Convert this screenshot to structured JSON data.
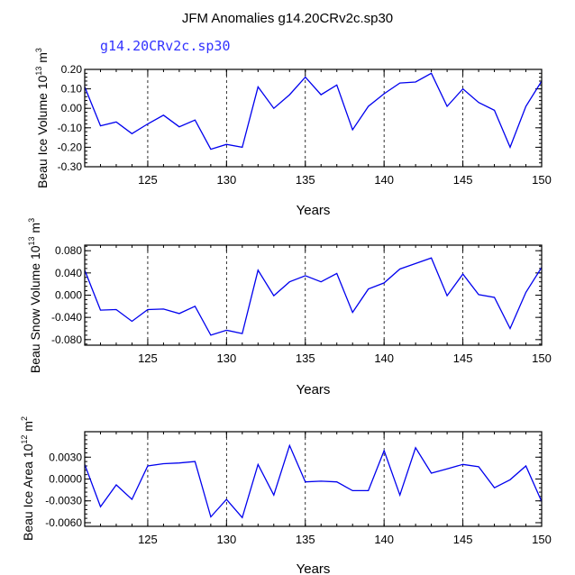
{
  "title": "JFM Anomalies g14.20CRv2c.sp30",
  "subtitle": "g14.20CRv2c.sp30",
  "colors": {
    "series": "#0000ee",
    "axis": "#000000",
    "subtitle": "#3333ff",
    "grid": "#000000"
  },
  "chart_data": [
    {
      "type": "line",
      "ylabel": {
        "prefix": "Beau Ice Volume 10",
        "exp": "13",
        "unit": " m",
        "unit_exp": "3"
      },
      "xlabel": "Years",
      "xlim": [
        121,
        150
      ],
      "ylim": [
        -0.3,
        0.2
      ],
      "xticks": [
        125,
        130,
        135,
        140,
        145,
        150
      ],
      "xtick_labels": [
        "125",
        "130",
        "135",
        "140",
        "145",
        "150"
      ],
      "yticks": [
        0.2,
        0.1,
        0.0,
        -0.1,
        -0.2,
        -0.3
      ],
      "ytick_labels": [
        "0.20",
        "0.10",
        "0.00",
        "-0.10",
        "-0.20",
        "-0.30"
      ],
      "grid_x": [
        125,
        130,
        135,
        140,
        145
      ],
      "x": [
        121,
        122,
        123,
        124,
        125,
        126,
        127,
        128,
        129,
        130,
        131,
        132,
        133,
        134,
        135,
        136,
        137,
        138,
        139,
        140,
        141,
        142,
        143,
        144,
        145,
        146,
        147,
        148,
        149,
        150
      ],
      "values": [
        0.11,
        -0.09,
        -0.07,
        -0.13,
        -0.08,
        -0.035,
        -0.095,
        -0.06,
        -0.21,
        -0.185,
        -0.2,
        0.11,
        0.0,
        0.07,
        0.16,
        0.07,
        0.12,
        -0.11,
        0.01,
        0.075,
        0.13,
        0.135,
        0.18,
        0.01,
        0.1,
        0.03,
        -0.01,
        -0.2,
        0.01,
        0.14
      ]
    },
    {
      "type": "line",
      "ylabel": {
        "prefix": "Beau Snow Volume 10",
        "exp": "13",
        "unit": " m",
        "unit_exp": "3"
      },
      "xlabel": "Years",
      "xlim": [
        121,
        150
      ],
      "ylim": [
        -0.09,
        0.09
      ],
      "xticks": [
        125,
        130,
        135,
        140,
        145,
        150
      ],
      "xtick_labels": [
        "125",
        "130",
        "135",
        "140",
        "145",
        "150"
      ],
      "yticks": [
        0.08,
        0.04,
        0.0,
        -0.04,
        -0.08
      ],
      "ytick_labels": [
        "0.080",
        "0.040",
        "0.000",
        "-0.040",
        "-0.080"
      ],
      "grid_x": [
        125,
        130,
        135,
        140,
        145
      ],
      "x": [
        121,
        122,
        123,
        124,
        125,
        126,
        127,
        128,
        129,
        130,
        131,
        132,
        133,
        134,
        135,
        136,
        137,
        138,
        139,
        140,
        141,
        142,
        143,
        144,
        145,
        146,
        147,
        148,
        149,
        150
      ],
      "values": [
        0.045,
        -0.027,
        -0.026,
        -0.047,
        -0.026,
        -0.025,
        -0.033,
        -0.02,
        -0.072,
        -0.063,
        -0.069,
        0.045,
        -0.001,
        0.024,
        0.035,
        0.024,
        0.039,
        -0.031,
        0.011,
        0.022,
        0.047,
        0.057,
        0.067,
        -0.001,
        0.038,
        0.001,
        -0.004,
        -0.06,
        0.005,
        0.05
      ]
    },
    {
      "type": "line",
      "ylabel": {
        "prefix": "Beau Ice Area 10",
        "exp": "12",
        "unit": " m",
        "unit_exp": "2"
      },
      "xlabel": "Years",
      "xlim": [
        121,
        150
      ],
      "ylim": [
        -0.0065,
        0.0065
      ],
      "xticks": [
        125,
        130,
        135,
        140,
        145,
        150
      ],
      "xtick_labels": [
        "125",
        "130",
        "135",
        "140",
        "145",
        "150"
      ],
      "yticks": [
        0.003,
        0.0,
        -0.003,
        -0.006
      ],
      "ytick_labels": [
        "0.0030",
        "0.0000",
        "-0.0030",
        "-0.0060"
      ],
      "grid_x": [
        125,
        130,
        135,
        140,
        145
      ],
      "x": [
        121,
        122,
        123,
        124,
        125,
        126,
        127,
        128,
        129,
        130,
        131,
        132,
        133,
        134,
        135,
        136,
        137,
        138,
        139,
        140,
        141,
        142,
        143,
        144,
        145,
        146,
        147,
        148,
        149,
        150
      ],
      "values": [
        0.002,
        -0.0038,
        -0.0008,
        -0.0028,
        0.0018,
        0.0021,
        0.0022,
        0.0024,
        -0.0052,
        -0.0028,
        -0.0053,
        0.002,
        -0.0022,
        0.0046,
        -0.0004,
        -0.0003,
        -0.0004,
        -0.0016,
        -0.0016,
        0.0039,
        -0.0022,
        0.0043,
        0.0008,
        0.0014,
        0.002,
        0.0017,
        -0.0012,
        -0.0001,
        0.0018,
        -0.0031
      ]
    }
  ]
}
